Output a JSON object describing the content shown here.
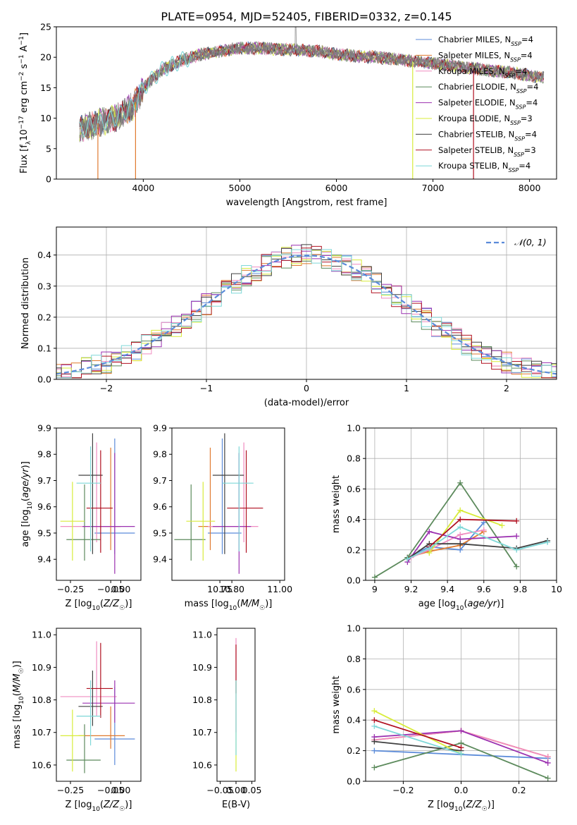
{
  "figure_title": "PLATE=0954, MJD=52405, FIBERID=0332, z=0.145",
  "colors": {
    "Chabrier MILES": "#5b8bd9",
    "Salpeter MILES": "#e07a2f",
    "Kroupa MILES": "#f08cc0",
    "Chabrier ELODIE": "#5c8a5c",
    "Salpeter ELODIE": "#9b30b0",
    "Kroupa ELODIE": "#d8ec3a",
    "Chabrier STELIB": "#404040",
    "Salpeter STELIB": "#b01020",
    "Kroupa STELIB": "#7fd8d8"
  },
  "spectrum_legend": [
    {
      "model": "Chabrier MILES",
      "nssp": "4"
    },
    {
      "model": "Salpeter MILES",
      "nssp": "4"
    },
    {
      "model": "Kroupa MILES",
      "nssp": "4"
    },
    {
      "model": "Chabrier ELODIE",
      "nssp": "4"
    },
    {
      "model": "Salpeter ELODIE",
      "nssp": "4"
    },
    {
      "model": "Kroupa ELODIE",
      "nssp": "3"
    },
    {
      "model": "Chabrier STELIB",
      "nssp": "4"
    },
    {
      "model": "Salpeter STELIB",
      "nssp": "3"
    },
    {
      "model": "Kroupa STELIB",
      "nssp": "4"
    }
  ],
  "hist_legend": "𝒩(0, 1)",
  "chart_data": [
    {
      "id": "spectrum",
      "type": "line",
      "xlabel": "wavelength [Angstrom, rest frame]",
      "ylabel_parts": [
        "Flux [f",
        "λ",
        "10",
        "−17",
        " erg cm",
        "−2",
        " s",
        "−1",
        " A",
        "−1",
        "]"
      ],
      "xlim": [
        3100,
        8280
      ],
      "ylim": [
        0,
        25
      ],
      "xticks": [
        4000,
        5000,
        6000,
        7000,
        8000
      ],
      "yticks": [
        0,
        5,
        10,
        15,
        20,
        25
      ],
      "continuum": {
        "x": [
          3340,
          3500,
          3700,
          3900,
          4000,
          4200,
          4400,
          4600,
          4800,
          5000,
          5200,
          5400,
          5600,
          5800,
          6000,
          6200,
          6400,
          6600,
          6800,
          7000,
          7200,
          7400,
          7600,
          7800,
          8000,
          8150
        ],
        "y": [
          8,
          9,
          10,
          12,
          15,
          18,
          19.5,
          20.5,
          21,
          21.5,
          21.5,
          21.3,
          21.2,
          21,
          20.5,
          20.2,
          20,
          19.7,
          19.3,
          19,
          18.6,
          18.2,
          17.8,
          17.5,
          17,
          16.6
        ]
      },
      "drops": [
        {
          "x": 3530,
          "y": 0,
          "series": "Salpeter MILES"
        },
        {
          "x": 3920,
          "y": 0,
          "series": "Salpeter MILES"
        },
        {
          "x": 6790,
          "y": 0,
          "series": "Kroupa ELODIE"
        },
        {
          "x": 7420,
          "y": 0,
          "series": "Salpeter STELIB"
        }
      ]
    },
    {
      "id": "residual_hist",
      "type": "step",
      "xlabel": "(data-model)/error",
      "ylabel": "Normed distribution",
      "xlim": [
        -2.5,
        2.5
      ],
      "ylim": [
        0,
        0.49
      ],
      "xticks": [
        -2,
        -1,
        0,
        1,
        2
      ],
      "yticks": [
        0.0,
        0.1,
        0.2,
        0.3,
        0.4
      ],
      "grid": true,
      "legend_loc": "top-right",
      "reference": "normal(0,1) pdf",
      "bin_width": 0.1
    },
    {
      "id": "age_vs_Z",
      "type": "errorbar",
      "xlabel": "Z [log10(Z/Z☉)]",
      "ylabel": "age [log10(age/yr)]",
      "xlim": [
        -0.32,
        0.1
      ],
      "ylim": [
        9.32,
        9.9
      ],
      "xticks": [
        -0.25,
        -0.05,
        0.0
      ],
      "xtick_labels": [
        "−0.25",
        "−0.05",
        "0.00"
      ],
      "yticks": [
        9.4,
        9.5,
        9.6,
        9.7,
        9.8,
        9.9
      ],
      "points": [
        {
          "series": "Chabrier MILES",
          "x": -0.03,
          "xerr": [
            0.1,
            0.1
          ],
          "y": 9.5,
          "yerr": [
            0.08,
            0.36
          ]
        },
        {
          "series": "Salpeter MILES",
          "x": -0.05,
          "xerr": [
            0.08,
            0.05
          ],
          "y": 9.525,
          "yerr": [
            0.09,
            0.3
          ]
        },
        {
          "series": "Kroupa MILES",
          "x": -0.12,
          "xerr": [
            0.18,
            0.1
          ],
          "y": 9.525,
          "yerr": [
            0.06,
            0.32
          ]
        },
        {
          "series": "Chabrier ELODIE",
          "x": -0.18,
          "xerr": [
            0.09,
            0.08
          ],
          "y": 9.475,
          "yerr": [
            0.08,
            0.21
          ]
        },
        {
          "series": "Salpeter ELODIE",
          "x": -0.03,
          "xerr": [
            0.16,
            0.1
          ],
          "y": 9.525,
          "yerr": [
            0.18,
            0.28
          ]
        },
        {
          "series": "Kroupa ELODIE",
          "x": -0.24,
          "xerr": [
            0.06,
            0.06
          ],
          "y": 9.545,
          "yerr": [
            0.15,
            0.15
          ]
        },
        {
          "series": "Chabrier STELIB",
          "x": -0.14,
          "xerr": [
            0.07,
            0.05
          ],
          "y": 9.72,
          "yerr": [
            0.3,
            0.16
          ]
        },
        {
          "series": "Salpeter STELIB",
          "x": -0.1,
          "xerr": [
            0.07,
            0.06
          ],
          "y": 9.595,
          "yerr": [
            0.17,
            0.22
          ]
        },
        {
          "series": "Kroupa STELIB",
          "x": -0.15,
          "xerr": [
            0.07,
            0.05
          ],
          "y": 9.69,
          "yerr": [
            0.26,
            0.14
          ]
        }
      ]
    },
    {
      "id": "age_vs_mass",
      "type": "errorbar",
      "xlabel": "mass [log10(M/M☉)]",
      "ylabel": "",
      "xlim": [
        10.55,
        11.02
      ],
      "ylim": [
        9.32,
        9.9
      ],
      "xticks": [
        10.75,
        10.8,
        11.0
      ],
      "xtick_labels": [
        "10.75",
        "10.80",
        "11.00"
      ],
      "yticks": [
        9.4,
        9.5,
        9.6,
        9.7,
        9.8,
        9.9
      ],
      "points": [
        {
          "series": "Chabrier MILES",
          "x": 10.76,
          "xerr": [
            0.06,
            0.08
          ],
          "y": 9.5,
          "yerr": [
            0.08,
            0.36
          ]
        },
        {
          "series": "Salpeter MILES",
          "x": 10.71,
          "xerr": [
            0.05,
            0.04
          ],
          "y": 9.525,
          "yerr": [
            0.09,
            0.3
          ]
        },
        {
          "series": "Kroupa MILES",
          "x": 10.85,
          "xerr": [
            0.15,
            0.06
          ],
          "y": 9.525,
          "yerr": [
            0.06,
            0.32
          ]
        },
        {
          "series": "Chabrier ELODIE",
          "x": 10.63,
          "xerr": [
            0.07,
            0.06
          ],
          "y": 9.475,
          "yerr": [
            0.08,
            0.21
          ]
        },
        {
          "series": "Salpeter ELODIE",
          "x": 10.83,
          "xerr": [
            0.11,
            0.05
          ],
          "y": 9.525,
          "yerr": [
            0.18,
            0.28
          ]
        },
        {
          "series": "Kroupa ELODIE",
          "x": 10.68,
          "xerr": [
            0.07,
            0.05
          ],
          "y": 9.545,
          "yerr": [
            0.15,
            0.15
          ]
        },
        {
          "series": "Chabrier STELIB",
          "x": 10.77,
          "xerr": [
            0.05,
            0.08
          ],
          "y": 9.72,
          "yerr": [
            0.3,
            0.16
          ]
        },
        {
          "series": "Salpeter STELIB",
          "x": 10.86,
          "xerr": [
            0.08,
            0.07
          ],
          "y": 9.595,
          "yerr": [
            0.17,
            0.22
          ]
        },
        {
          "series": "Kroupa STELIB",
          "x": 10.83,
          "xerr": [
            0.07,
            0.06
          ],
          "y": 9.69,
          "yerr": [
            0.26,
            0.14
          ]
        }
      ]
    },
    {
      "id": "massweight_vs_age",
      "type": "line",
      "xlabel": "age [log10(age/yr)]",
      "ylabel": "mass weight",
      "xlim": [
        8.95,
        10.0
      ],
      "ylim": [
        0,
        1.0
      ],
      "xticks": [
        9.0,
        9.2,
        9.4,
        9.6,
        9.8,
        10.0
      ],
      "yticks": [
        0.0,
        0.2,
        0.4,
        0.6,
        0.8,
        1.0
      ],
      "grid": true,
      "series": [
        {
          "name": "Chabrier MILES",
          "x": [
            9.18,
            9.3,
            9.47,
            9.6
          ],
          "y": [
            0.15,
            0.22,
            0.2,
            0.38
          ]
        },
        {
          "name": "Salpeter MILES",
          "x": [
            9.18,
            9.3,
            9.47,
            9.6
          ],
          "y": [
            0.15,
            0.19,
            0.23,
            0.32
          ]
        },
        {
          "name": "Kroupa MILES",
          "x": [
            9.2,
            9.3,
            9.47,
            9.6
          ],
          "y": [
            0.15,
            0.2,
            0.3,
            0.33
          ]
        },
        {
          "name": "Chabrier ELODIE",
          "x": [
            9.0,
            9.18,
            9.47,
            9.78
          ],
          "y": [
            0.02,
            0.15,
            0.64,
            0.09
          ]
        },
        {
          "name": "Salpeter ELODIE",
          "x": [
            9.18,
            9.3,
            9.47,
            9.78
          ],
          "y": [
            0.12,
            0.32,
            0.27,
            0.29
          ]
        },
        {
          "name": "Kroupa ELODIE",
          "x": [
            9.3,
            9.47,
            9.7
          ],
          "y": [
            0.18,
            0.46,
            0.36
          ]
        },
        {
          "name": "Chabrier STELIB",
          "x": [
            9.18,
            9.3,
            9.47,
            9.78,
            9.95
          ],
          "y": [
            0.14,
            0.24,
            0.24,
            0.21,
            0.26
          ]
        },
        {
          "name": "Salpeter STELIB",
          "x": [
            9.3,
            9.47,
            9.78
          ],
          "y": [
            0.22,
            0.4,
            0.39
          ]
        },
        {
          "name": "Kroupa STELIB",
          "x": [
            9.18,
            9.3,
            9.47,
            9.78,
            9.95
          ],
          "y": [
            0.14,
            0.21,
            0.35,
            0.2,
            0.25
          ]
        }
      ]
    },
    {
      "id": "mass_vs_Z",
      "type": "errorbar",
      "xlabel": "Z [log10(Z/Z☉)]",
      "ylabel": "mass [log10(M/M☉)]",
      "xlim": [
        -0.32,
        0.1
      ],
      "ylim": [
        10.55,
        11.02
      ],
      "xticks": [
        -0.25,
        -0.05,
        0.0
      ],
      "xtick_labels": [
        "−0.25",
        "−0.05",
        "0.00"
      ],
      "yticks": [
        10.6,
        10.7,
        10.8,
        10.9,
        11.0
      ],
      "points": [
        {
          "series": "Chabrier MILES",
          "x": -0.03,
          "xerr": [
            0.1,
            0.1
          ],
          "y": 10.68,
          "yerr": [
            0.08,
            0.16
          ]
        },
        {
          "series": "Salpeter MILES",
          "x": -0.05,
          "xerr": [
            0.16,
            0.07
          ],
          "y": 10.69,
          "yerr": [
            0.04,
            0.09
          ]
        },
        {
          "series": "Kroupa MILES",
          "x": -0.12,
          "xerr": [
            0.18,
            0.1
          ],
          "y": 10.81,
          "yerr": [
            0.06,
            0.17
          ]
        },
        {
          "series": "Chabrier ELODIE",
          "x": -0.18,
          "xerr": [
            0.09,
            0.08
          ],
          "y": 10.615,
          "yerr": [
            0.04,
            0.11
          ]
        },
        {
          "series": "Salpeter ELODIE",
          "x": -0.03,
          "xerr": [
            0.16,
            0.1
          ],
          "y": 10.79,
          "yerr": [
            0.06,
            0.07
          ]
        },
        {
          "series": "Kroupa ELODIE",
          "x": -0.24,
          "xerr": [
            0.06,
            0.06
          ],
          "y": 10.69,
          "yerr": [
            0.11,
            0.08
          ]
        },
        {
          "series": "Chabrier STELIB",
          "x": -0.14,
          "xerr": [
            0.07,
            0.05
          ],
          "y": 10.78,
          "yerr": [
            0.06,
            0.11
          ]
        },
        {
          "series": "Salpeter STELIB",
          "x": -0.1,
          "xerr": [
            0.07,
            0.06
          ],
          "y": 10.835,
          "yerr": [
            0.09,
            0.14
          ]
        },
        {
          "series": "Kroupa STELIB",
          "x": -0.15,
          "xerr": [
            0.07,
            0.05
          ],
          "y": 10.75,
          "yerr": [
            0.09,
            0.11
          ]
        }
      ]
    },
    {
      "id": "mass_vs_ebv",
      "type": "errorbar",
      "xlabel": "E(B-V)",
      "ylabel": "",
      "xlim": [
        -0.06,
        0.06
      ],
      "ylim": [
        10.55,
        11.02
      ],
      "xticks": [
        -0.05,
        0.0,
        0.05
      ],
      "xtick_labels": [
        "−0.05",
        "0.00",
        "0.05"
      ],
      "yticks": [
        10.6,
        10.7,
        10.8,
        10.9,
        11.0
      ],
      "points": [
        {
          "series": "Kroupa ELODIE",
          "x": 0.0,
          "xerr": [
            0,
            0
          ],
          "y": 10.7,
          "yerr": [
            0.12,
            0.16
          ]
        },
        {
          "series": "Kroupa MILES",
          "x": 0.0,
          "xerr": [
            0,
            0
          ],
          "y": 10.78,
          "yerr": [
            0.08,
            0.21
          ]
        },
        {
          "series": "Salpeter STELIB",
          "x": 0.0,
          "xerr": [
            0,
            0
          ],
          "y": 10.88,
          "yerr": [
            0.06,
            0.09
          ]
        },
        {
          "series": "Kroupa STELIB",
          "x": 0.0,
          "xerr": [
            0,
            0
          ],
          "y": 10.75,
          "yerr": [
            0.12,
            0.11
          ]
        }
      ]
    },
    {
      "id": "massweight_vs_Z",
      "type": "line",
      "xlabel": "Z [log10(Z/Z☉)]",
      "ylabel": "mass weight",
      "xlim": [
        -0.33,
        0.33
      ],
      "ylim": [
        0,
        1.0
      ],
      "xticks": [
        -0.2,
        0.0,
        0.2
      ],
      "xtick_labels": [
        "−0.2",
        "0.0",
        "0.2"
      ],
      "yticks": [
        0.0,
        0.2,
        0.4,
        0.6,
        0.8,
        1.0
      ],
      "grid": true,
      "series": [
        {
          "name": "Chabrier MILES",
          "x": [
            -0.3,
            0.3
          ],
          "y": [
            0.2,
            0.15
          ]
        },
        {
          "name": "Salpeter MILES",
          "x": [
            -0.3,
            0.0,
            0.3
          ],
          "y": [
            0.27,
            0.33,
            0.16
          ]
        },
        {
          "name": "Kroupa MILES",
          "x": [
            -0.3,
            0.0,
            0.3
          ],
          "y": [
            0.27,
            0.33,
            0.16
          ]
        },
        {
          "name": "Chabrier ELODIE",
          "x": [
            -0.3,
            0.0,
            0.3
          ],
          "y": [
            0.09,
            0.25,
            0.02
          ]
        },
        {
          "name": "Salpeter ELODIE",
          "x": [
            -0.3,
            0.0,
            0.3
          ],
          "y": [
            0.29,
            0.33,
            0.12
          ]
        },
        {
          "name": "Kroupa ELODIE",
          "x": [
            -0.3,
            0.0
          ],
          "y": [
            0.46,
            0.18
          ]
        },
        {
          "name": "Chabrier STELIB",
          "x": [
            -0.3,
            0.0
          ],
          "y": [
            0.26,
            0.2
          ]
        },
        {
          "name": "Salpeter STELIB",
          "x": [
            -0.3,
            0.0
          ],
          "y": [
            0.4,
            0.22
          ]
        },
        {
          "name": "Kroupa STELIB",
          "x": [
            -0.3,
            0.0
          ],
          "y": [
            0.36,
            0.18
          ]
        }
      ]
    }
  ]
}
